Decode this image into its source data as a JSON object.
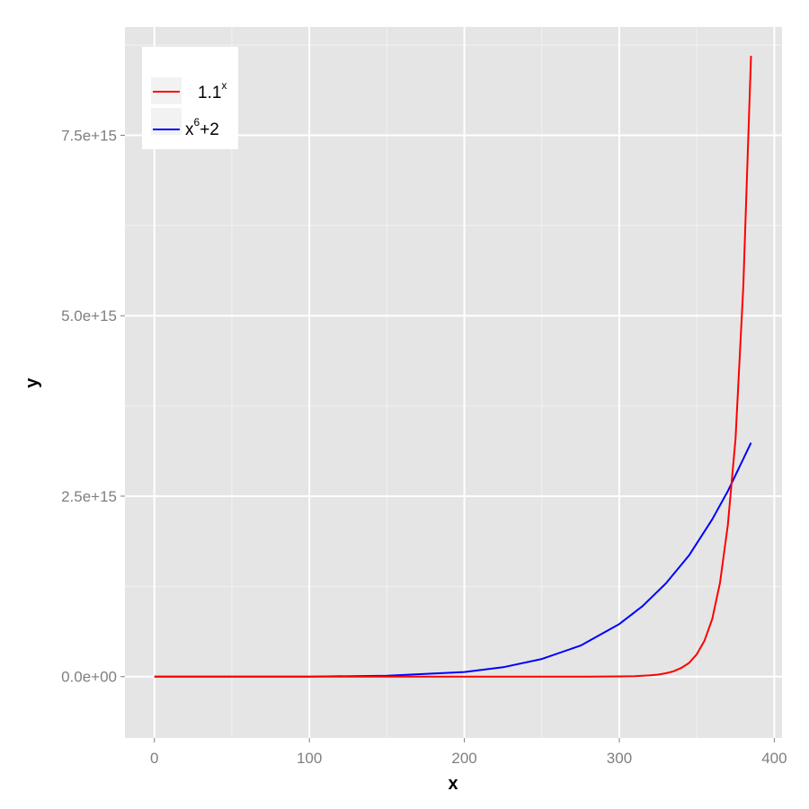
{
  "chart_data": {
    "type": "line",
    "xlabel": "x",
    "ylabel": "y",
    "xlim": [
      -19,
      405
    ],
    "ylim": [
      -850000000000000.0,
      9000000000000000.0
    ],
    "x_ticks": [
      0,
      100,
      200,
      300,
      400
    ],
    "x_tick_labels": [
      "0",
      "100",
      "200",
      "300",
      "400"
    ],
    "y_ticks": [
      0,
      2500000000000000.0,
      5000000000000000.0,
      7500000000000000.0
    ],
    "y_tick_labels": [
      "0.0e+00",
      "2.5e+15",
      "5.0e+15",
      "7.5e+15"
    ],
    "grid": true,
    "legend_position": "top-left",
    "series": [
      {
        "name_base": "1.1",
        "name_sup": "x",
        "color": "#ff0000",
        "x": [
          0,
          50,
          100,
          150,
          200,
          250,
          280,
          300,
          310,
          320,
          325,
          330,
          335,
          340,
          345,
          350,
          355,
          360,
          365,
          370,
          375,
          380,
          385
        ],
        "y": [
          1,
          117,
          13781,
          1600000.0,
          190000000.0,
          22000000000.0,
          390000000000.0,
          2600000000000.0,
          6800000000000.0,
          18000000000000.0,
          28000000000000.0,
          46000000000000.0,
          74000000000000.0,
          120000000000000.0,
          190000000000000.0,
          310000000000000.0,
          500000000000000.0,
          800000000000000.0,
          1300000000000000.0,
          2100000000000000.0,
          3300000000000000.0,
          5400000000000000.0,
          8600000000000000.0
        ]
      },
      {
        "name_base": "x",
        "name_sup": "6",
        "name_tail": "+2",
        "color": "#0000ff",
        "x": [
          0,
          50,
          100,
          150,
          200,
          225,
          250,
          275,
          300,
          315,
          330,
          345,
          360,
          370,
          385
        ],
        "y": [
          2,
          15600000000.0,
          1000000000000.0,
          11400000000000.0,
          64000000000000.0,
          130000000000000.0,
          244000000000000.0,
          430000000000000.0,
          729000000000000.0,
          977000000000000.0,
          1290000000000000.0,
          1680000000000000.0,
          2180000000000000.0,
          2570000000000000.0,
          3240000000000000.0
        ]
      }
    ]
  }
}
